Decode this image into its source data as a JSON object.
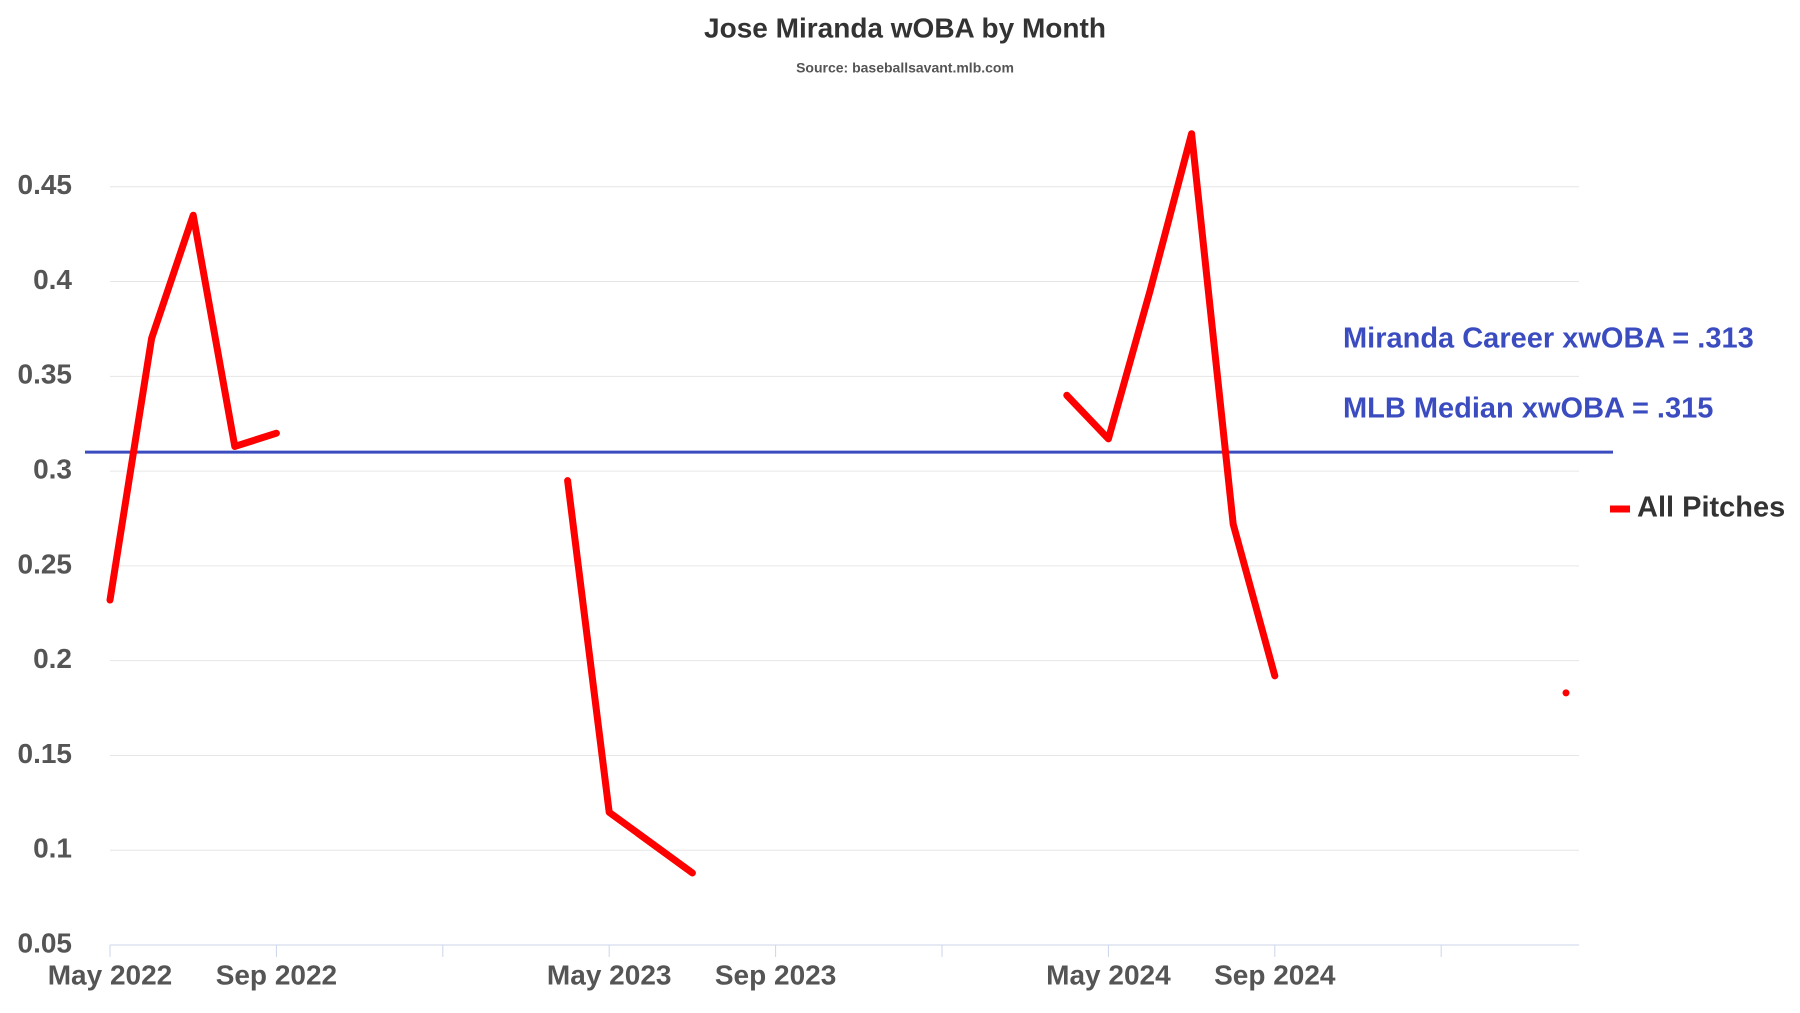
{
  "chart_data": {
    "type": "line",
    "title": "Jose Miranda wOBA by Month",
    "subtitle": "Source: baseballsavant.mlb.com",
    "categories": [
      "May 2022",
      null,
      null,
      null,
      "Sep 2022",
      null,
      null,
      null,
      null,
      null,
      null,
      null,
      "May 2023",
      null,
      null,
      null,
      "Sep 2023",
      null,
      null,
      null,
      null,
      null,
      null,
      null,
      "May 2024",
      null,
      null,
      null,
      "Sep 2024",
      null,
      null,
      null,
      null,
      null,
      null,
      null
    ],
    "xticks_every": 4,
    "series": [
      {
        "name": "All Pitches",
        "color": "#ff0000",
        "values": [
          0.232,
          0.37,
          0.435,
          0.313,
          0.32,
          null,
          null,
          null,
          null,
          null,
          null,
          0.295,
          0.12,
          0.104,
          0.088,
          null,
          null,
          null,
          null,
          null,
          null,
          null,
          null,
          0.34,
          0.317,
          0.395,
          0.478,
          0.272,
          0.192,
          null,
          null,
          null,
          null,
          null,
          null,
          0.183
        ]
      }
    ],
    "hline": {
      "value": 0.31,
      "color": "#3b4cc0"
    },
    "annotations": [
      "Miranda Career xwOBA = .313",
      "MLB Median xwOBA = .315"
    ],
    "ylim": [
      0.05,
      0.5
    ],
    "yticks": [
      0.05,
      0.1,
      0.15,
      0.2,
      0.25,
      0.3,
      0.35,
      0.4,
      0.45
    ],
    "grid": true,
    "legend": "right"
  }
}
